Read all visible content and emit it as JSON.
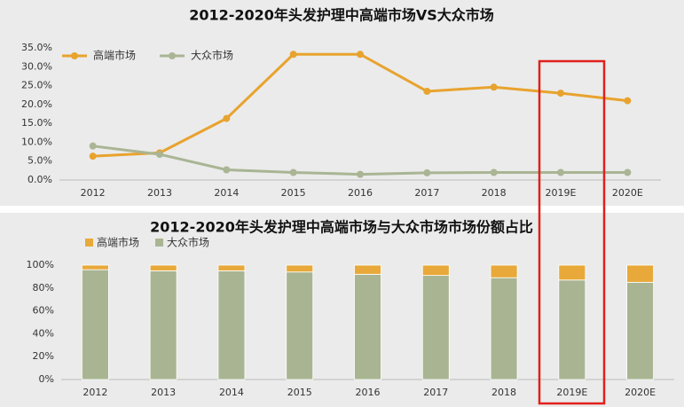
{
  "chart_data": [
    {
      "type": "line",
      "title": "2012-2020年头发护理中高端市场VS大众市场",
      "categories": [
        "2012",
        "2013",
        "2014",
        "2015",
        "2016",
        "2017",
        "2018",
        "2019E",
        "2020E"
      ],
      "series": [
        {
          "name": "高端市场",
          "color": "#e8a32e",
          "values": [
            6.3,
            7.2,
            16.3,
            33.3,
            33.3,
            23.5,
            24.6,
            23.0,
            21.0
          ]
        },
        {
          "name": "大众市场",
          "color": "#a9b594",
          "values": [
            9.0,
            6.8,
            2.7,
            2.0,
            1.5,
            1.9,
            2.0,
            2.0,
            2.0
          ]
        }
      ],
      "ylim": [
        0,
        35
      ],
      "yticks": [
        {
          "value": 0,
          "label": "0.0%"
        },
        {
          "value": 5,
          "label": "5.0%"
        },
        {
          "value": 10,
          "label": "10.0%"
        },
        {
          "value": 15,
          "label": "15.0%"
        },
        {
          "value": 20,
          "label": "20.0%"
        },
        {
          "value": 25,
          "label": "25.0%"
        },
        {
          "value": 30,
          "label": "30.0%"
        },
        {
          "value": 35,
          "label": "35.0%"
        }
      ],
      "grid": false,
      "legend": "top-left"
    },
    {
      "type": "bar",
      "stacked": true,
      "title": "2012-2020年头发护理中高端市场与大众市场市场份额占比",
      "categories": [
        "2012",
        "2013",
        "2014",
        "2015",
        "2016",
        "2017",
        "2018",
        "2019E",
        "2020E"
      ],
      "series": [
        {
          "name": "高端市场",
          "color": "#e8a93a",
          "values": [
            4,
            5,
            5,
            6,
            8,
            9,
            11,
            13,
            15
          ]
        },
        {
          "name": "大众市场",
          "color": "#a9b592",
          "values": [
            96,
            95,
            95,
            94,
            92,
            91,
            89,
            87,
            85
          ]
        }
      ],
      "ylim": [
        0,
        100
      ],
      "yticks": [
        {
          "value": 0,
          "label": "0%"
        },
        {
          "value": 20,
          "label": "20%"
        },
        {
          "value": 40,
          "label": "40%"
        },
        {
          "value": 60,
          "label": "60%"
        },
        {
          "value": 80,
          "label": "80%"
        },
        {
          "value": 100,
          "label": "100%"
        }
      ],
      "grid": false,
      "legend": "top-left"
    }
  ]
}
